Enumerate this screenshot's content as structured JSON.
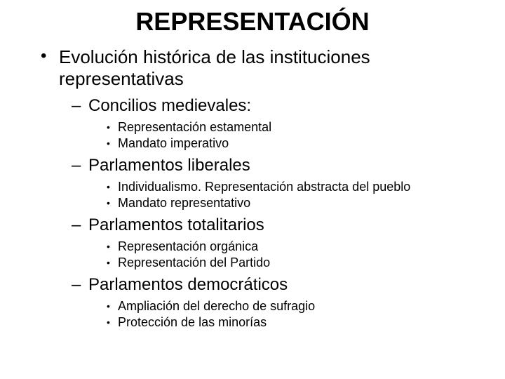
{
  "title": "REPRESENTACIÓN",
  "level1": {
    "text": "Evolución histórica de las instituciones representativas",
    "sections": [
      {
        "heading": "Concilios medievales:",
        "items": [
          "Representación estamental",
          "Mandato imperativo"
        ]
      },
      {
        "heading": "Parlamentos liberales",
        "items": [
          "Individualismo. Representación abstracta del pueblo",
          "Mandato representativo"
        ]
      },
      {
        "heading": "Parlamentos totalitarios",
        "items": [
          "Representación orgánica",
          "Representación del Partido"
        ]
      },
      {
        "heading": "Parlamentos democráticos",
        "items": [
          "Ampliación del derecho de sufragio",
          "Protección de las minorías"
        ]
      }
    ]
  },
  "colors": {
    "background": "#ffffff",
    "text": "#000000"
  },
  "typography": {
    "title_fontsize": 36,
    "level1_fontsize": 26,
    "level2_fontsize": 24,
    "level3_fontsize": 18,
    "font_family": "Arial"
  }
}
